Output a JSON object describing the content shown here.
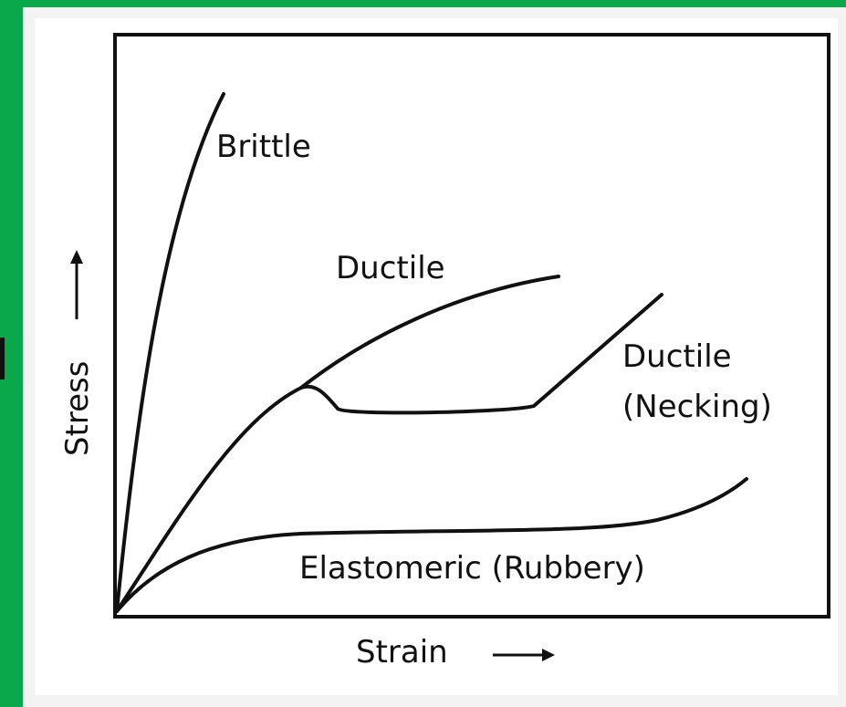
{
  "diagram": {
    "axes": {
      "x": "Strain",
      "y": "Stress"
    },
    "curves": [
      {
        "label": "Brittle"
      },
      {
        "label": "Ductile"
      },
      {
        "label": "Ductile",
        "sublabel": "(Necking)"
      },
      {
        "label": "Elastomeric (Rubbery)"
      }
    ]
  }
}
